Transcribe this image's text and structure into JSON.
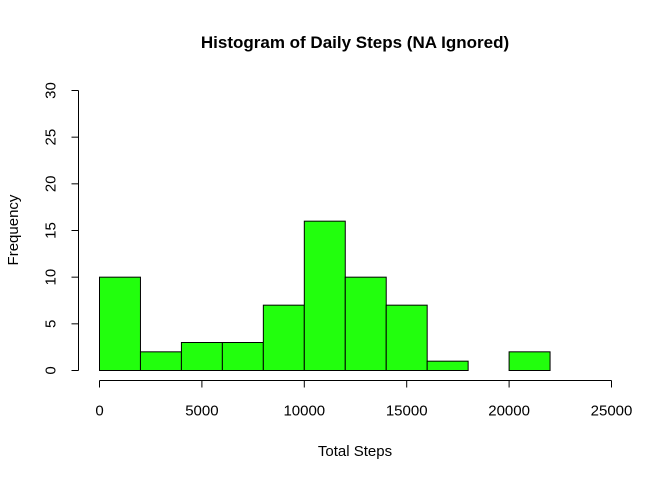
{
  "chart_data": {
    "type": "bar",
    "title": "Histogram of Daily Steps (NA Ignored)",
    "xlabel": "Total Steps",
    "ylabel": "Frequency",
    "bar_color": "#22ff0d",
    "xlim": [
      0,
      25000
    ],
    "ylim": [
      0,
      30
    ],
    "x_ticks": [
      0,
      5000,
      10000,
      15000,
      20000,
      25000
    ],
    "x_tick_labels": [
      "0",
      "5000",
      "10000",
      "15000",
      "20000",
      "25000"
    ],
    "y_ticks": [
      0,
      5,
      10,
      15,
      20,
      25,
      30
    ],
    "y_tick_labels": [
      "0",
      "5",
      "10",
      "15",
      "20",
      "25",
      "30"
    ],
    "bins": [
      {
        "start": 0,
        "end": 2000,
        "count": 10
      },
      {
        "start": 2000,
        "end": 4000,
        "count": 2
      },
      {
        "start": 4000,
        "end": 6000,
        "count": 3
      },
      {
        "start": 6000,
        "end": 8000,
        "count": 3
      },
      {
        "start": 8000,
        "end": 10000,
        "count": 7
      },
      {
        "start": 10000,
        "end": 12000,
        "count": 16
      },
      {
        "start": 12000,
        "end": 14000,
        "count": 10
      },
      {
        "start": 14000,
        "end": 16000,
        "count": 7
      },
      {
        "start": 16000,
        "end": 18000,
        "count": 1
      },
      {
        "start": 18000,
        "end": 20000,
        "count": 0
      },
      {
        "start": 20000,
        "end": 22000,
        "count": 2
      }
    ],
    "grid": false
  }
}
